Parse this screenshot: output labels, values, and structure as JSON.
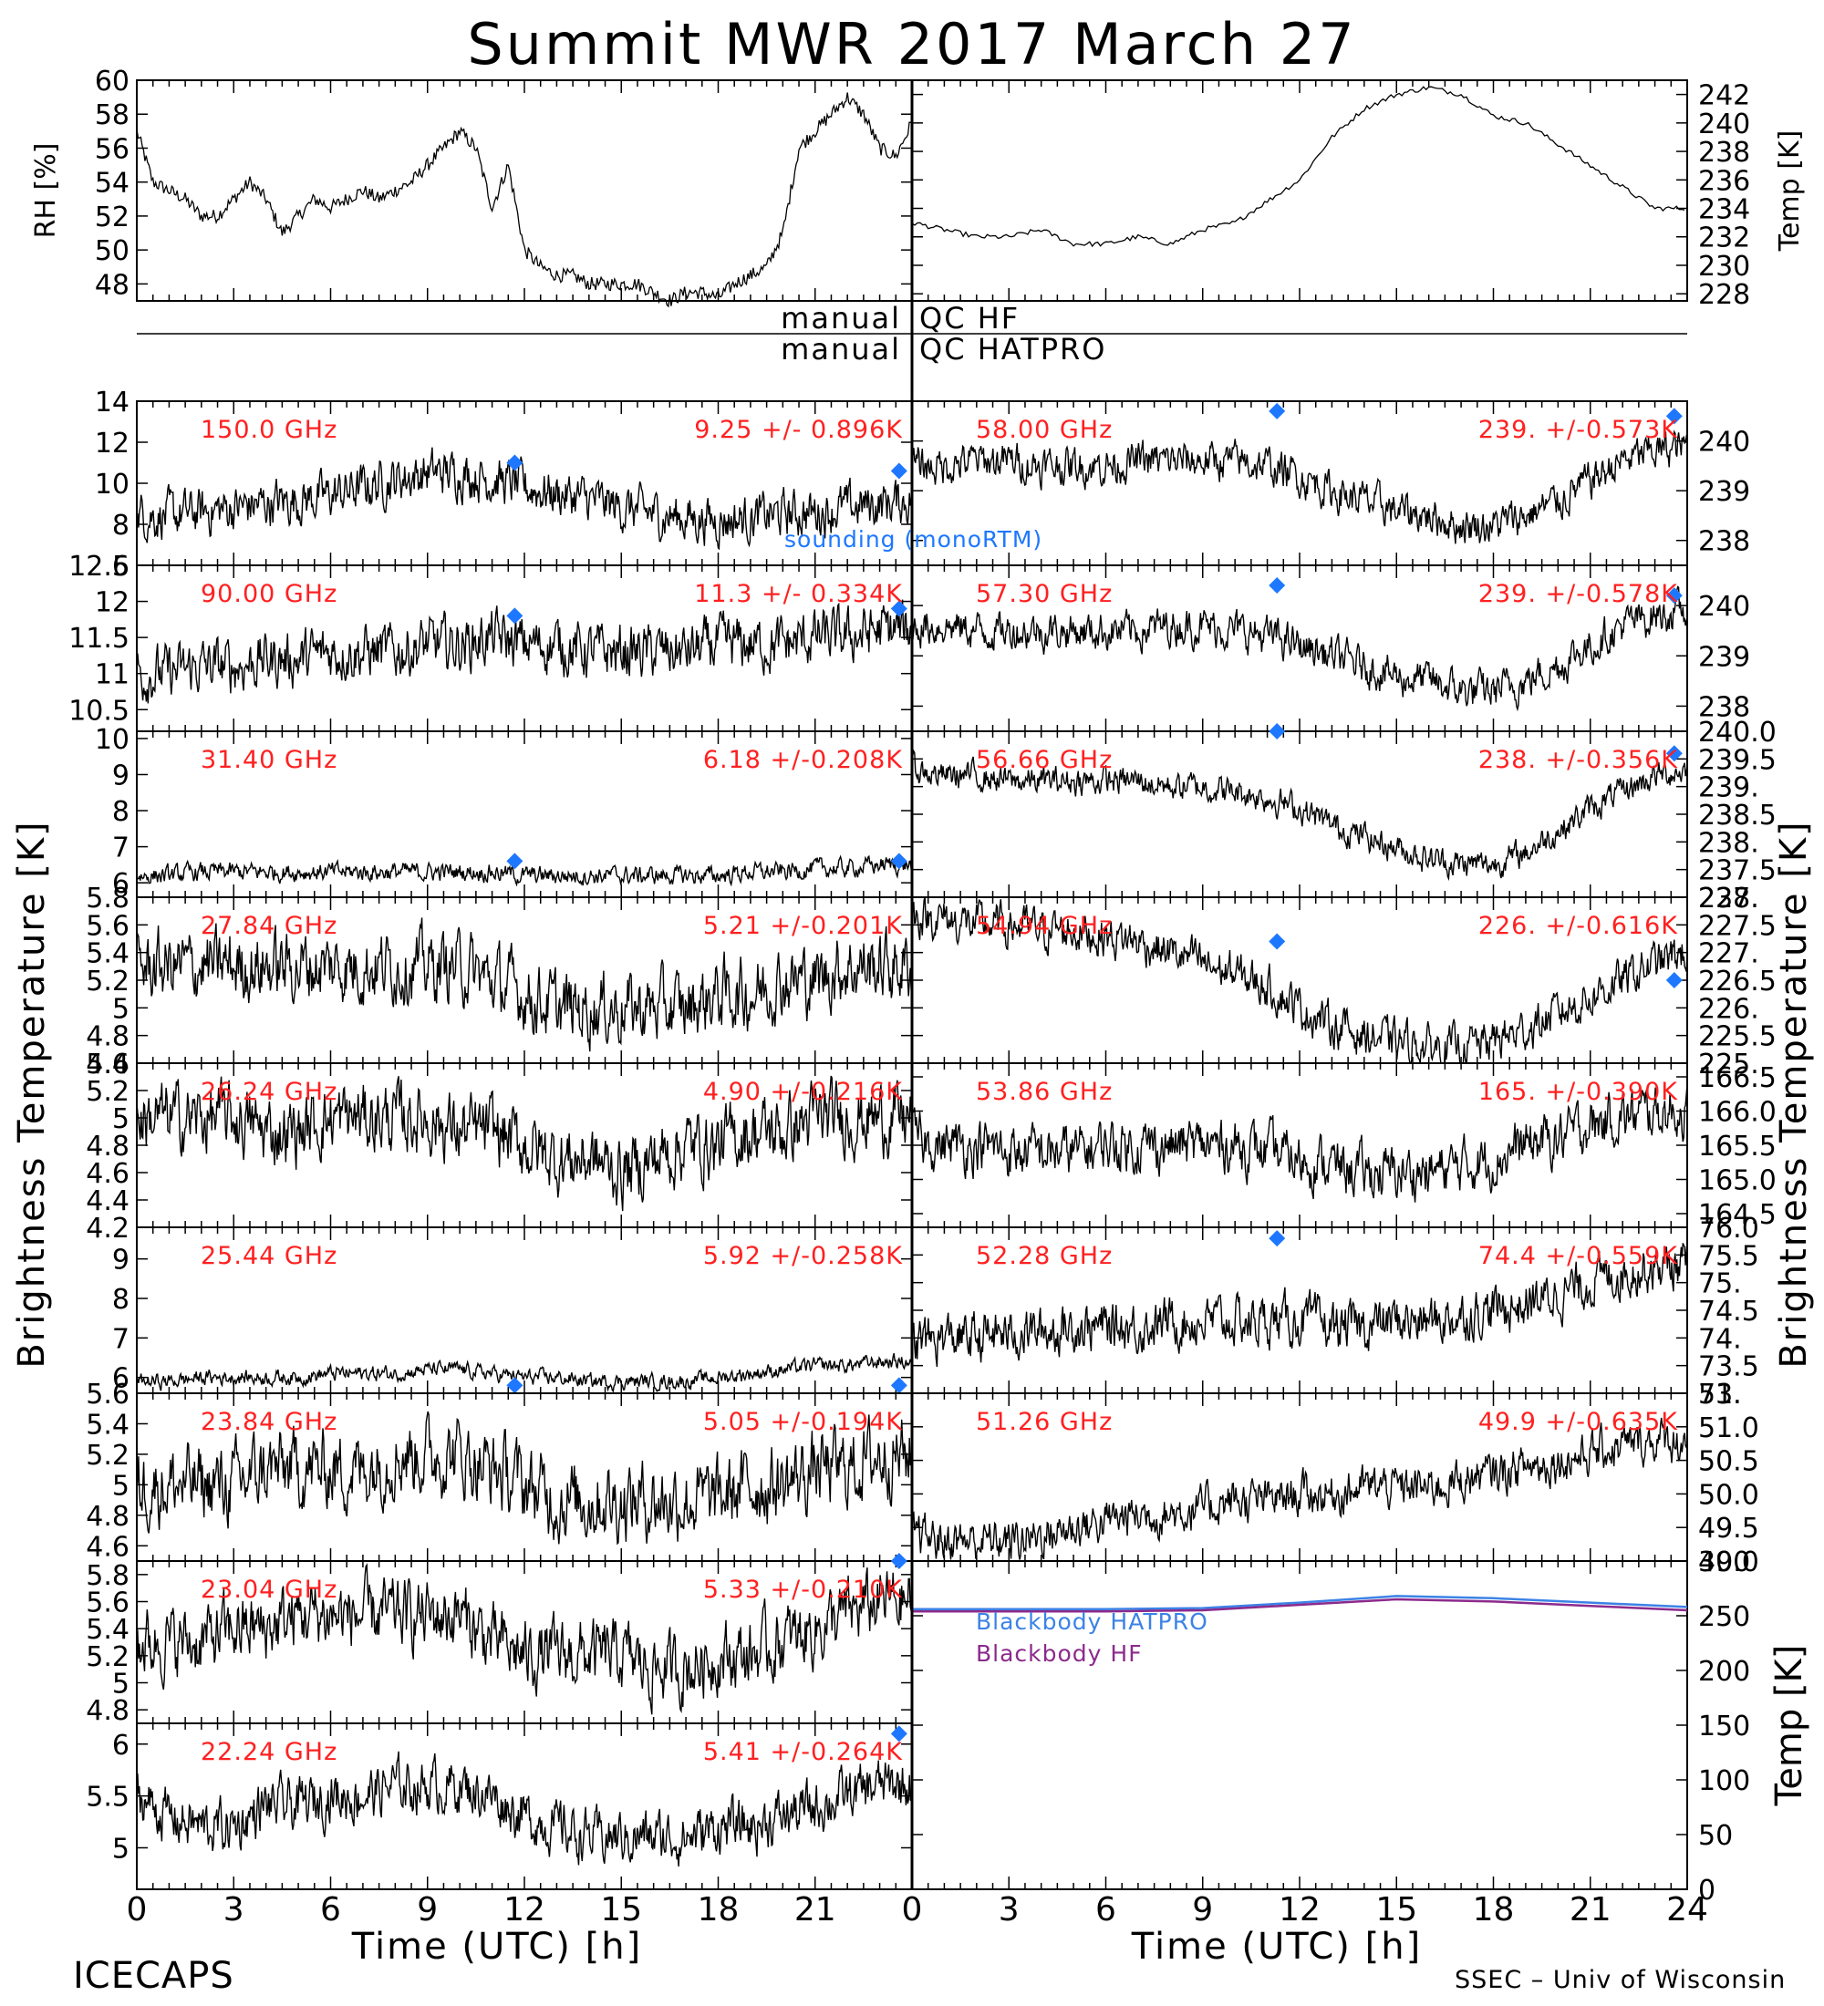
{
  "title": "Summit MWR 2017 March 27",
  "footer": {
    "left": "ICECAPS",
    "right": "SSEC – Univ of Wisconsin"
  },
  "x_axis": {
    "label": "Time (UTC) [h]",
    "range": [
      0,
      24
    ],
    "ticks_left": [
      "0",
      "3",
      "6",
      "9",
      "12",
      "15",
      "18",
      "21"
    ],
    "ticks_right": [
      "0",
      "3",
      "6",
      "9",
      "12",
      "15",
      "18",
      "21",
      "24"
    ]
  },
  "left_axis_label": "Brightness Temperature [K]",
  "right_axis_label": "Brightness Temperature [K]",
  "qc": {
    "hf_left": "manual",
    "hf_right": "QC HF",
    "hatpro_left": "manual",
    "hatpro_right": "QC HATPRO"
  },
  "legend": {
    "sounding": "sounding (monoRTM)",
    "bb_hatpro": "Blackbody HATPRO",
    "bb_hf": "Blackbody HF"
  },
  "colors": {
    "trace": "#000000",
    "label": "#ff2020",
    "sounding": "#1e78ff",
    "bb_hatpro": "#3c82e6",
    "bb_hf": "#8c2a8c"
  },
  "chart_data": [
    {
      "type": "line",
      "panel": "rh",
      "ylabel": "RH [%]",
      "ylim": [
        47,
        60
      ],
      "yticks": [
        48,
        50,
        52,
        54,
        56,
        58,
        60
      ],
      "x": [
        0,
        0.5,
        1,
        1.5,
        2,
        2.5,
        3,
        3.5,
        4,
        4.5,
        5,
        5.5,
        6,
        6.5,
        7,
        7.5,
        8,
        8.5,
        9,
        9.5,
        10,
        10.5,
        11,
        11.5,
        12,
        12.5,
        13,
        13.5,
        14,
        14.5,
        15,
        15.5,
        16,
        16.5,
        17,
        17.5,
        18,
        18.5,
        19,
        19.5,
        20,
        20.5,
        21,
        21.5,
        22,
        22.5,
        23,
        23.5,
        24
      ],
      "y": [
        57,
        54,
        53.5,
        53,
        52,
        52,
        53,
        54,
        53,
        51,
        52,
        53,
        52.5,
        53,
        53.5,
        53,
        53.5,
        54,
        55,
        56,
        57,
        56,
        52.5,
        55,
        50,
        49,
        48.5,
        48.5,
        48,
        48,
        48,
        48,
        47.5,
        47,
        47.5,
        47.5,
        47.2,
        48,
        48.5,
        49,
        51,
        56,
        57,
        58,
        59,
        58,
        56,
        55.5,
        57.5
      ]
    },
    {
      "type": "line",
      "panel": "temp",
      "ylabel": "Temp [K]",
      "ylim": [
        227.5,
        243
      ],
      "yticks": [
        228,
        230,
        232,
        234,
        236,
        238,
        240,
        242
      ],
      "x": [
        0,
        1,
        2,
        3,
        4,
        5,
        6,
        7,
        8,
        9,
        10,
        11,
        12,
        13,
        14,
        15,
        16,
        17,
        18,
        19,
        20,
        21,
        22,
        23,
        24
      ],
      "y": [
        233,
        232.5,
        232,
        232,
        232.5,
        231.5,
        231.5,
        232,
        231.5,
        232.5,
        233,
        234.5,
        236,
        239,
        241,
        242,
        242.5,
        242,
        240.5,
        240,
        238.5,
        237,
        235.5,
        234,
        234
      ]
    },
    {
      "type": "line",
      "panel": "150.0",
      "freq": "150.0 GHz",
      "stats": "9.25 +/- 0.896K",
      "ylim": [
        6,
        14
      ],
      "yticks": [
        6,
        8,
        10,
        12,
        14
      ],
      "base": [
        8.5,
        8.4,
        8.6,
        8.8,
        9.0,
        9.2,
        9.4,
        9.8,
        10.2,
        10.5,
        10.5,
        10.2,
        9.8,
        9.5,
        9.2,
        8.8,
        8.5,
        8.3,
        8.2,
        8.3,
        8.5,
        8.6,
        8.8,
        9.0,
        9.2
      ],
      "noise": 0.9,
      "sounding": [
        [
          11.7,
          11.0
        ],
        [
          23.6,
          10.6
        ]
      ]
    },
    {
      "type": "line",
      "panel": "90.00",
      "freq": "90.00 GHz",
      "stats": "11.3 +/- 0.334K",
      "ylim": [
        10.2,
        12.5
      ],
      "yticks": [
        10.5,
        11.0,
        11.5,
        12.0,
        12.5
      ],
      "base": [
        11.0,
        11.0,
        11.1,
        11.1,
        11.2,
        11.2,
        11.3,
        11.3,
        11.3,
        11.4,
        11.4,
        11.5,
        11.4,
        11.4,
        11.3,
        11.3,
        11.3,
        11.3,
        11.4,
        11.4,
        11.4,
        11.5,
        11.5,
        11.6,
        11.6
      ],
      "noise": 0.3,
      "sounding": [
        [
          11.7,
          11.8
        ],
        [
          23.6,
          11.9
        ]
      ]
    },
    {
      "type": "line",
      "panel": "31.40",
      "freq": "31.40 GHz",
      "stats": "6.18 +/-0.208K",
      "ylim": [
        5.6,
        10.2
      ],
      "yticks": [
        6,
        7,
        8,
        9,
        10
      ],
      "base": [
        6.2,
        6.2,
        6.3,
        6.3,
        6.3,
        6.3,
        6.3,
        6.3,
        6.3,
        6.3,
        6.3,
        6.3,
        6.2,
        6.2,
        6.2,
        6.2,
        6.2,
        6.2,
        6.2,
        6.3,
        6.3,
        6.4,
        6.4,
        6.5,
        6.5
      ],
      "noise": 0.2,
      "sounding": [
        [
          11.7,
          6.6
        ],
        [
          23.6,
          6.6
        ]
      ]
    },
    {
      "type": "line",
      "panel": "27.84",
      "freq": "27.84 GHz",
      "stats": "5.21 +/-0.201K",
      "ylim": [
        4.6,
        5.8
      ],
      "yticks": [
        4.6,
        4.8,
        5.0,
        5.2,
        5.4,
        5.6,
        5.8
      ],
      "base": [
        5.3,
        5.3,
        5.3,
        5.3,
        5.3,
        5.3,
        5.3,
        5.3,
        5.3,
        5.3,
        5.3,
        5.2,
        5.1,
        5.0,
        5.0,
        5.0,
        5.0,
        5.0,
        5.1,
        5.1,
        5.2,
        5.2,
        5.3,
        5.3,
        5.3
      ],
      "noise": 0.2,
      "sounding": []
    },
    {
      "type": "line",
      "panel": "26.24",
      "freq": "26.24 GHz",
      "stats": "4.90 +/-0.216K",
      "ylim": [
        4.2,
        5.4
      ],
      "yticks": [
        4.2,
        4.4,
        4.6,
        4.8,
        5.0,
        5.2,
        5.4
      ],
      "base": [
        5.0,
        5.0,
        5.0,
        5.0,
        4.9,
        4.9,
        5.0,
        5.0,
        5.0,
        5.0,
        4.9,
        4.9,
        4.8,
        4.7,
        4.7,
        4.6,
        4.7,
        4.8,
        4.8,
        4.9,
        4.9,
        5.0,
        5.0,
        5.0,
        5.0
      ],
      "noise": 0.2,
      "sounding": []
    },
    {
      "type": "line",
      "panel": "25.44",
      "freq": "25.44 GHz",
      "stats": "5.92 +/-0.258K",
      "ylim": [
        5.6,
        9.8
      ],
      "yticks": [
        6,
        7,
        8,
        9
      ],
      "base": [
        5.9,
        5.9,
        6.0,
        6.0,
        6.0,
        6.0,
        6.1,
        6.1,
        6.1,
        6.2,
        6.2,
        6.1,
        6.0,
        6.0,
        5.9,
        5.9,
        5.9,
        5.9,
        6.0,
        6.1,
        6.2,
        6.3,
        6.3,
        6.4,
        6.4
      ],
      "noise": 0.15,
      "sounding": [
        [
          11.7,
          5.8
        ],
        [
          23.6,
          5.8
        ]
      ]
    },
    {
      "type": "line",
      "panel": "23.84",
      "freq": "23.84 GHz",
      "stats": "5.05 +/-0.194K",
      "ylim": [
        4.5,
        5.6
      ],
      "yticks": [
        4.6,
        4.8,
        5.0,
        5.2,
        5.4,
        5.6
      ],
      "base": [
        5.0,
        5.0,
        5.0,
        5.0,
        5.1,
        5.1,
        5.1,
        5.1,
        5.2,
        5.2,
        5.2,
        5.1,
        5.0,
        4.9,
        4.9,
        4.9,
        4.9,
        4.9,
        4.9,
        5.0,
        5.0,
        5.1,
        5.1,
        5.2,
        5.2
      ],
      "noise": 0.2,
      "sounding": []
    },
    {
      "type": "line",
      "panel": "23.04",
      "freq": "23.04 GHz",
      "stats": "5.33 +/-0.210K",
      "ylim": [
        4.7,
        5.9
      ],
      "yticks": [
        4.8,
        5.0,
        5.2,
        5.4,
        5.6,
        5.8
      ],
      "base": [
        5.3,
        5.3,
        5.3,
        5.4,
        5.4,
        5.5,
        5.5,
        5.5,
        5.5,
        5.5,
        5.5,
        5.3,
        5.2,
        5.2,
        5.2,
        5.2,
        5.1,
        5.1,
        5.2,
        5.2,
        5.3,
        5.4,
        5.5,
        5.6,
        5.6
      ],
      "noise": 0.2,
      "sounding": [
        [
          23.6,
          5.9
        ]
      ]
    },
    {
      "type": "line",
      "panel": "22.24",
      "freq": "22.24 GHz",
      "stats": "5.41 +/-0.264K",
      "ylim": [
        4.6,
        6.2
      ],
      "yticks": [
        5.0,
        5.5,
        6.0
      ],
      "base": [
        5.5,
        5.3,
        5.2,
        5.2,
        5.4,
        5.4,
        5.5,
        5.5,
        5.6,
        5.6,
        5.6,
        5.5,
        5.3,
        5.2,
        5.1,
        5.1,
        5.1,
        5.1,
        5.2,
        5.2,
        5.3,
        5.4,
        5.5,
        5.6,
        5.6
      ],
      "noise": 0.2,
      "sounding": [
        [
          23.6,
          6.1
        ]
      ]
    },
    {
      "type": "line",
      "panel": "58.00",
      "freq": "58.00 GHz",
      "stats": "239. +/-0.573K",
      "ylim": [
        237.5,
        240.8
      ],
      "yticks": [
        238,
        239,
        240
      ],
      "base": [
        239.5,
        239.5,
        239.6,
        239.6,
        239.5,
        239.5,
        239.5,
        239.6,
        239.6,
        239.6,
        239.6,
        239.5,
        239.3,
        239.0,
        238.8,
        238.6,
        238.5,
        238.3,
        238.3,
        238.5,
        238.8,
        239.2,
        239.6,
        239.8,
        239.9
      ],
      "noise": 0.3,
      "sounding": [
        [
          11.3,
          240.6
        ],
        [
          23.6,
          240.5
        ]
      ]
    },
    {
      "type": "line",
      "panel": "57.30",
      "freq": "57.30 GHz",
      "stats": "239. +/-0.578K",
      "ylim": [
        237.5,
        240.8
      ],
      "yticks": [
        238,
        239,
        240
      ],
      "base": [
        239.6,
        239.6,
        239.5,
        239.5,
        239.5,
        239.5,
        239.5,
        239.5,
        239.6,
        239.6,
        239.5,
        239.4,
        239.2,
        239.0,
        238.8,
        238.6,
        238.5,
        238.3,
        238.3,
        238.5,
        238.8,
        239.2,
        239.6,
        239.8,
        239.9
      ],
      "noise": 0.3,
      "sounding": [
        [
          11.3,
          240.4
        ],
        [
          23.6,
          240.2
        ]
      ]
    },
    {
      "type": "line",
      "panel": "56.66",
      "freq": "56.66 GHz",
      "stats": "238. +/-0.356K",
      "ylim": [
        237,
        240
      ],
      "yticks": [
        237,
        237.5,
        238,
        238.5,
        239,
        239.5,
        240
      ],
      "yticklabels": [
        "237.",
        "237.5",
        "238.",
        "238.5",
        "239.",
        "239.5",
        "240.0"
      ],
      "base": [
        239.3,
        239.2,
        239.2,
        239.1,
        239.1,
        239.1,
        239.1,
        239.1,
        239.0,
        239.0,
        238.9,
        238.8,
        238.6,
        238.3,
        238.1,
        237.9,
        237.7,
        237.6,
        237.6,
        237.8,
        238.2,
        238.6,
        238.9,
        239.2,
        239.3
      ],
      "noise": 0.2,
      "sounding": [
        [
          11.3,
          240.0
        ],
        [
          23.6,
          239.6
        ]
      ]
    },
    {
      "type": "line",
      "panel": "54.94",
      "freq": "54.94 GHz",
      "stats": "226. +/-0.616K",
      "ylim": [
        225,
        228
      ],
      "yticks": [
        225,
        225.5,
        226,
        226.5,
        227,
        227.5,
        228
      ],
      "yticklabels": [
        "225.",
        "225.5",
        "226.",
        "226.5",
        "227.",
        "227.5",
        "228."
      ],
      "base": [
        227.7,
        227.6,
        227.5,
        227.5,
        227.4,
        227.4,
        227.3,
        227.2,
        227.0,
        226.8,
        226.6,
        226.4,
        226.0,
        225.7,
        225.5,
        225.4,
        225.3,
        225.3,
        225.4,
        225.6,
        225.9,
        226.2,
        226.5,
        226.8,
        227.0
      ],
      "noise": 0.3,
      "sounding": [
        [
          11.3,
          227.2
        ],
        [
          23.6,
          226.5
        ]
      ]
    },
    {
      "type": "line",
      "panel": "53.86",
      "freq": "53.86 GHz",
      "stats": "165. +/-0.390K",
      "ylim": [
        164.3,
        166.7
      ],
      "yticks": [
        164.5,
        165,
        165.5,
        166,
        166.5
      ],
      "yticklabels": [
        "164.5",
        "165.0",
        "165.5",
        "166.0",
        "166.5"
      ],
      "base": [
        165.6,
        165.5,
        165.5,
        165.4,
        165.4,
        165.4,
        165.5,
        165.5,
        165.5,
        165.5,
        165.5,
        165.4,
        165.3,
        165.2,
        165.1,
        165.1,
        165.1,
        165.2,
        165.3,
        165.5,
        165.6,
        165.8,
        165.9,
        166.0,
        166.0
      ],
      "noise": 0.3,
      "sounding": []
    },
    {
      "type": "line",
      "panel": "52.28",
      "freq": "52.28 GHz",
      "stats": "74.4 +/-0.559K",
      "ylim": [
        73,
        76
      ],
      "yticks": [
        73,
        73.5,
        74,
        74.5,
        75,
        75.5,
        76
      ],
      "yticklabels": [
        "73.",
        "73.5",
        "74.",
        "74.5",
        "75.",
        "75.5",
        "76.0"
      ],
      "base": [
        73.9,
        74.0,
        74.0,
        74.1,
        74.1,
        74.2,
        74.2,
        74.2,
        74.3,
        74.3,
        74.3,
        74.3,
        74.3,
        74.2,
        74.2,
        74.3,
        74.3,
        74.4,
        74.5,
        74.6,
        74.8,
        75.0,
        75.2,
        75.3,
        75.3
      ],
      "noise": 0.35,
      "sounding": [
        [
          11.3,
          75.8
        ]
      ]
    },
    {
      "type": "line",
      "panel": "51.26",
      "freq": "51.26 GHz",
      "stats": "49.9 +/-0.635K",
      "ylim": [
        49,
        51.5
      ],
      "yticks": [
        49,
        49.5,
        50,
        50.5,
        51,
        51.5
      ],
      "yticklabels": [
        "49.0",
        "49.5",
        "50.0",
        "50.5",
        "51.0",
        "51."
      ],
      "base": [
        49.4,
        49.3,
        49.3,
        49.3,
        49.4,
        49.5,
        49.6,
        49.7,
        49.7,
        49.8,
        49.9,
        49.9,
        50.0,
        50.0,
        50.1,
        50.1,
        50.1,
        50.2,
        50.3,
        50.4,
        50.5,
        50.6,
        50.7,
        50.8,
        50.8
      ],
      "noise": 0.25,
      "sounding": []
    },
    {
      "type": "line",
      "panel": "blackbody",
      "ylabel": "Temp [K]",
      "ylim": [
        0,
        300
      ],
      "yticks": [
        0,
        50,
        100,
        150,
        200,
        250,
        300
      ],
      "series": [
        {
          "name": "Blackbody HATPRO",
          "x": [
            0,
            3,
            6,
            9,
            12,
            15,
            18,
            21,
            24
          ],
          "y": [
            256,
            256,
            256,
            257,
            262,
            268,
            266,
            262,
            258
          ]
        },
        {
          "name": "Blackbody HF",
          "x": [
            0,
            3,
            6,
            9,
            12,
            15,
            18,
            21,
            24
          ],
          "y": [
            254,
            254,
            254,
            255,
            260,
            265,
            263,
            259,
            255
          ]
        }
      ]
    }
  ]
}
